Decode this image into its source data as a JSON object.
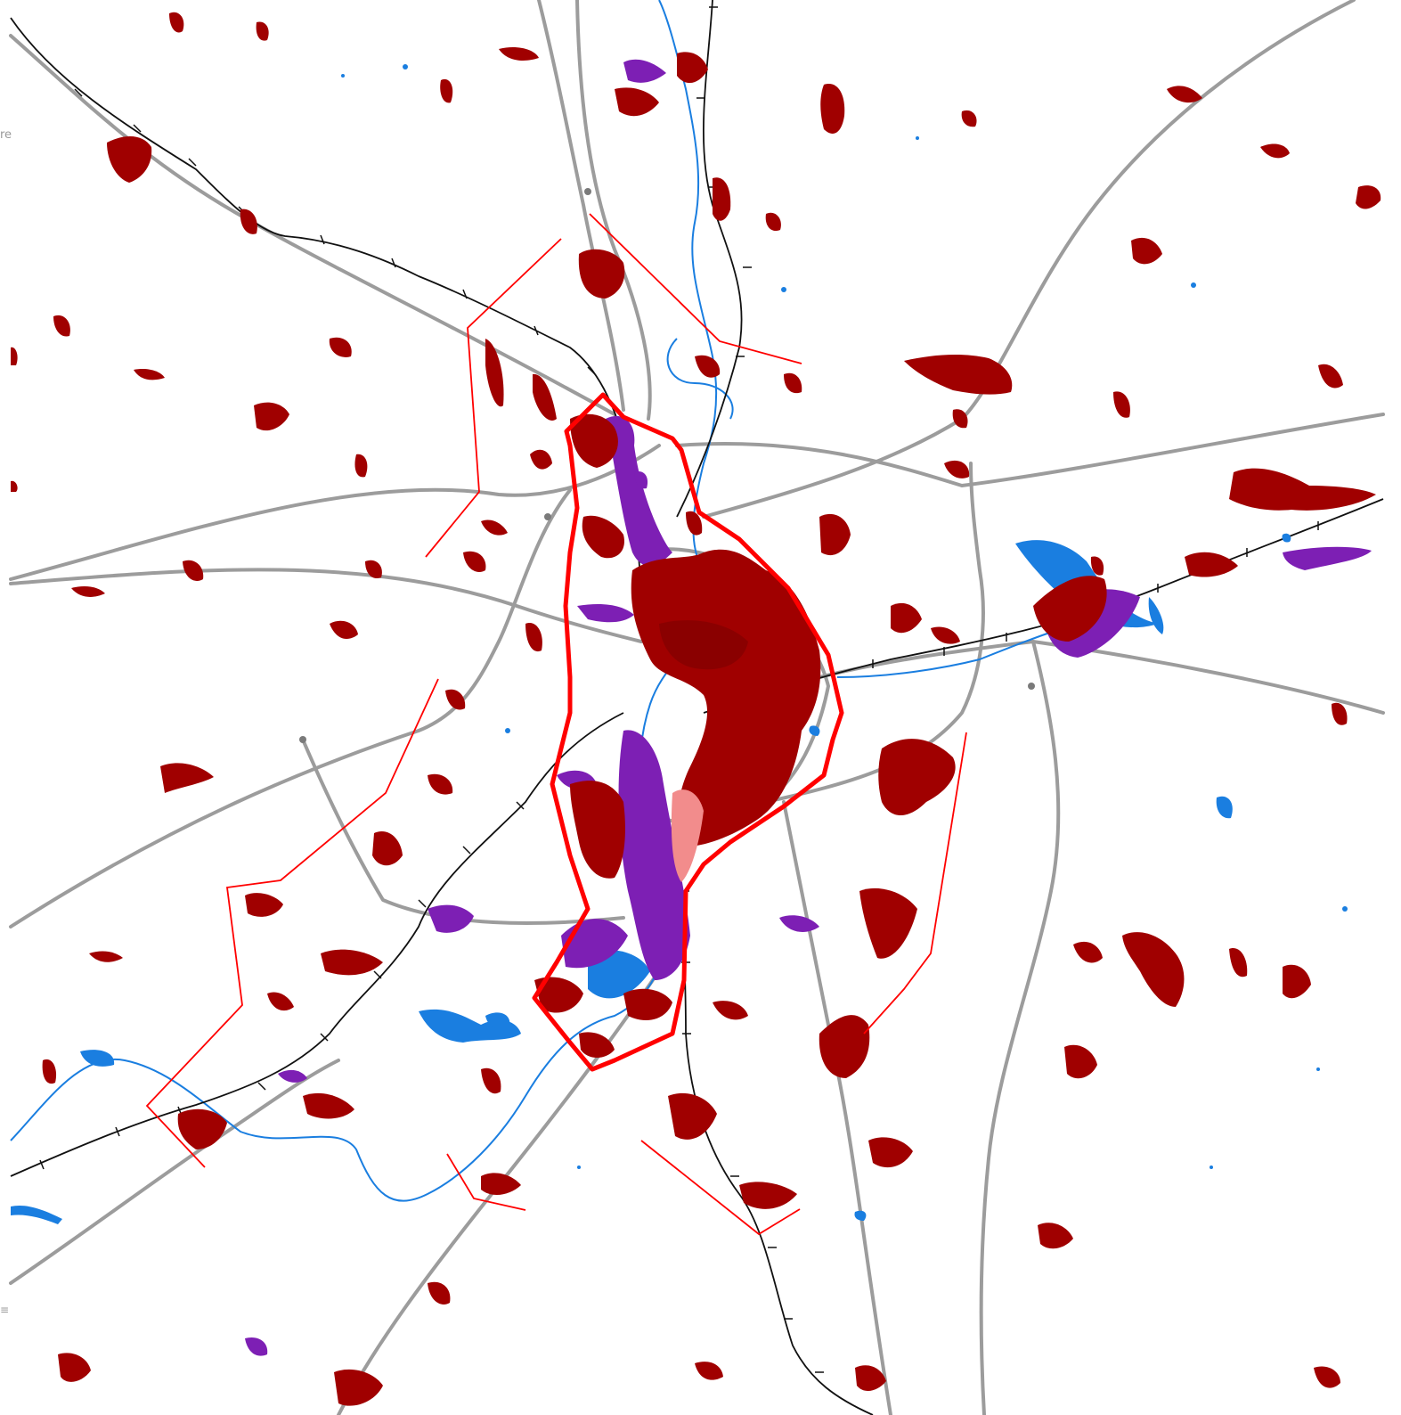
{
  "map": {
    "colors": {
      "background": "#ffffff",
      "urban": "#a00000",
      "urban_core": "#8a0000",
      "industrial": "#7d1fb4",
      "commercial": "#f28c8c",
      "water": "#1a7ee0",
      "road": "#9c9c9c",
      "railway": "#111111",
      "boundary": "#ff0000"
    },
    "layers": [
      "road-network",
      "railway-line",
      "river",
      "water-bodies",
      "urban-areas",
      "industrial-areas",
      "study-area-boundary",
      "buffer-lines"
    ]
  },
  "edge_fragments": {
    "top_left": "re",
    "bottom_left": "≡"
  }
}
